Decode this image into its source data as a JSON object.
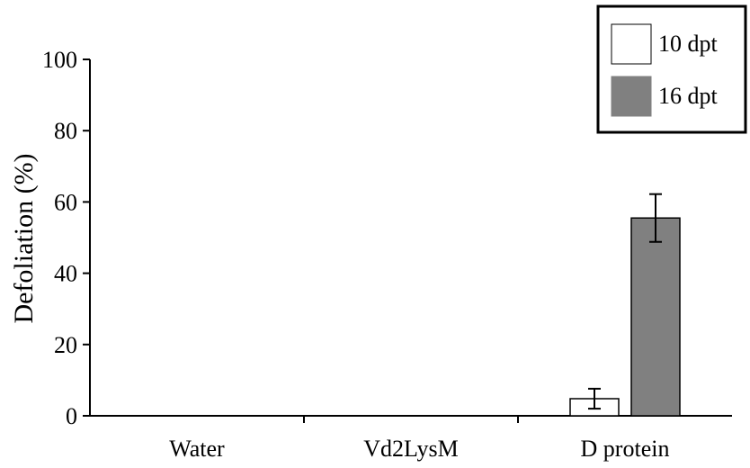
{
  "chart_data": {
    "type": "bar",
    "categories": [
      "Water",
      "Vd2LysM",
      "D protein"
    ],
    "series": [
      {
        "name": "10 dpt",
        "values": [
          0,
          0,
          4.8
        ],
        "errors": [
          0,
          0,
          2.8
        ],
        "color": "#ffffff"
      },
      {
        "name": "16 dpt",
        "values": [
          0,
          0,
          55.5
        ],
        "errors": [
          0,
          0,
          6.7
        ],
        "color": "#808080"
      }
    ],
    "ylabel": "Defoliation (%)",
    "xlabel": "",
    "ylim": [
      0,
      100
    ],
    "yticks": [
      0,
      20,
      40,
      60,
      80,
      100
    ],
    "grid": false,
    "legend_position": "top-right"
  }
}
